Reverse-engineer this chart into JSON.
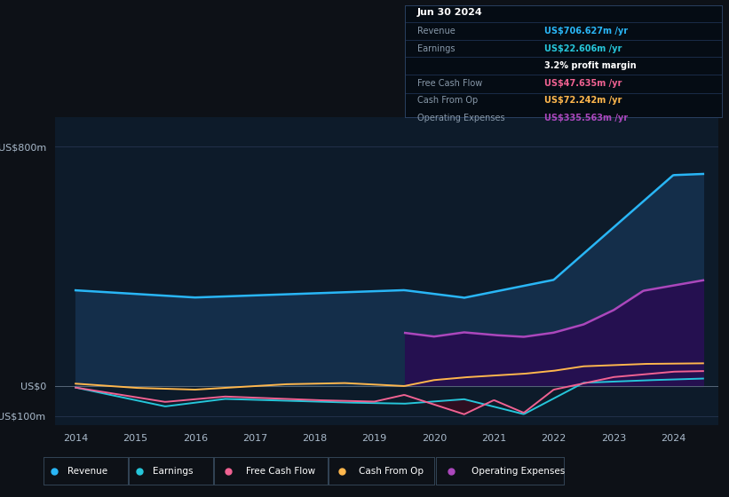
{
  "background_color": "#0d1117",
  "plot_bg_color": "#0d1b2a",
  "grid_color": "#253550",
  "colors": {
    "revenue": "#29b6f6",
    "earnings": "#26c6da",
    "free_cash_flow": "#f06292",
    "cash_from_op": "#ffb74d",
    "operating_expenses": "#ab47bc"
  },
  "info_box": {
    "date": "Jun 30 2024",
    "revenue_label": "Revenue",
    "revenue_val": "US$706.627m /yr",
    "earnings_label": "Earnings",
    "earnings_val": "US$22.606m /yr",
    "margin_val": "3.2% profit margin",
    "fcf_label": "Free Cash Flow",
    "fcf_val": "US$47.635m /yr",
    "cfo_label": "Cash From Op",
    "cfo_val": "US$72.242m /yr",
    "opex_label": "Operating Expenses",
    "opex_val": "US$335.563m /yr"
  },
  "legend_labels": [
    "Revenue",
    "Earnings",
    "Free Cash Flow",
    "Cash From Op",
    "Operating Expenses"
  ],
  "ylim": [
    -130,
    900
  ],
  "xlim": [
    2013.65,
    2024.75
  ],
  "yticks": [
    -100,
    0,
    800
  ],
  "ytick_labels": [
    "-US$100m",
    "US$0",
    "US$800m"
  ],
  "xticks": [
    2014,
    2015,
    2016,
    2017,
    2018,
    2019,
    2020,
    2021,
    2022,
    2023,
    2024
  ]
}
